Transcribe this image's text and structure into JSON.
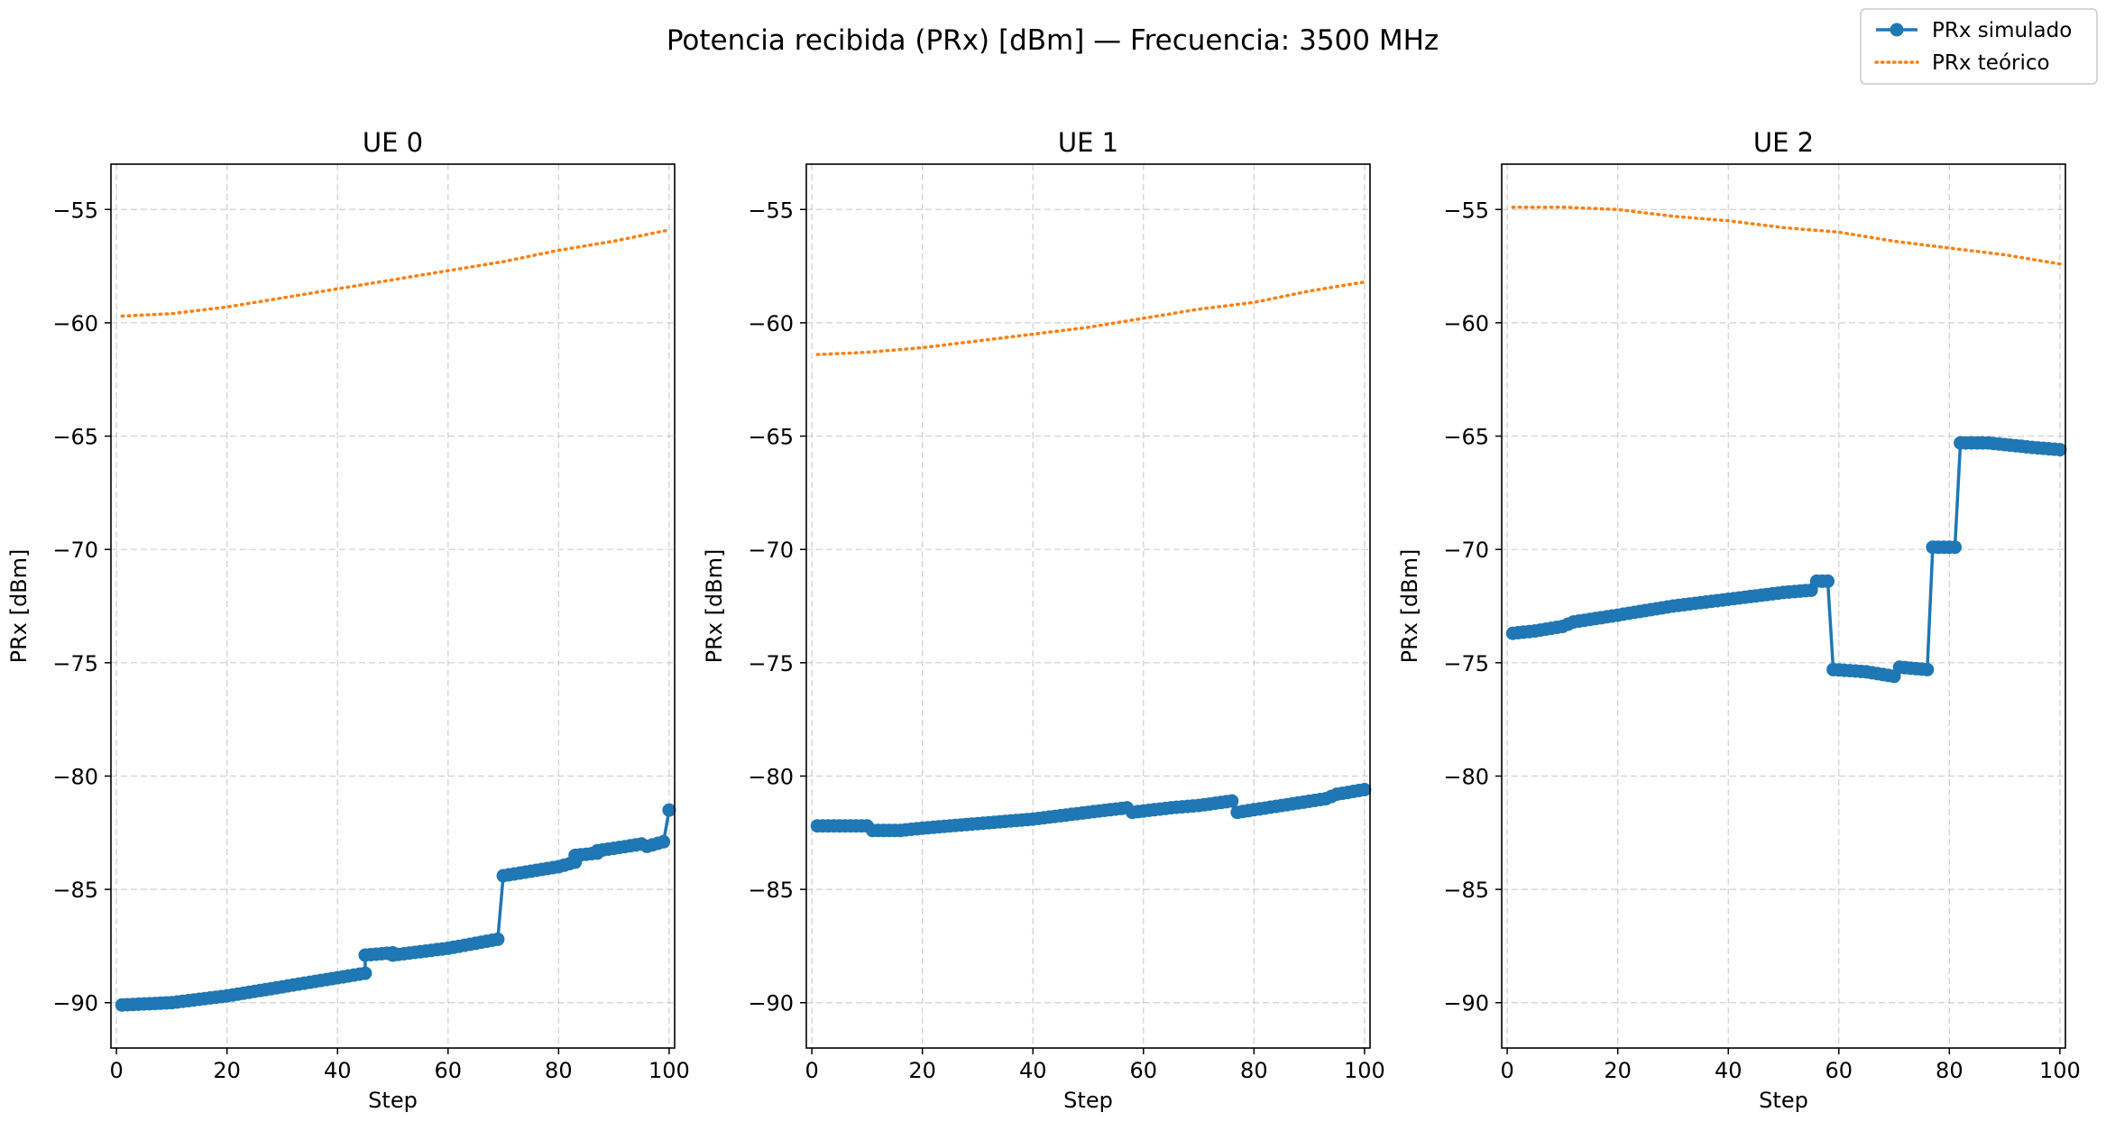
{
  "figure": {
    "suptitle": "Potencia recibida (PRx) [dBm] — Frecuencia: 3500 MHz",
    "legend": {
      "placement": "top-right",
      "entries": [
        {
          "label": "PRx simulado",
          "color": "#1f77b4",
          "style": "solid-line-circle-markers"
        },
        {
          "label": "PRx teórico",
          "color": "#ff7f0e",
          "style": "dotted-line"
        }
      ]
    }
  },
  "chart_data": [
    {
      "type": "line",
      "title": "UE 0",
      "xlabel": "Step",
      "ylabel": "PRx [dBm]",
      "xlim": [
        -1,
        101
      ],
      "ylim": [
        -92,
        -53
      ],
      "xticks": [
        0,
        20,
        40,
        60,
        80,
        100
      ],
      "yticks": [
        -90,
        -85,
        -80,
        -75,
        -70,
        -65,
        -60,
        -55
      ],
      "ytick_labels": [
        "−90",
        "−85",
        "−80",
        "−75",
        "−70",
        "−65",
        "−60",
        "−55"
      ],
      "grid": true,
      "series": [
        {
          "name": "PRx simulado",
          "color": "#1f77b4",
          "markers": true,
          "points": [
            [
              1,
              -90.1
            ],
            [
              10,
              -90.0
            ],
            [
              20,
              -89.7
            ],
            [
              30,
              -89.3
            ],
            [
              40,
              -88.9
            ],
            [
              45,
              -88.7
            ],
            [
              45,
              -87.9
            ],
            [
              50,
              -87.8
            ],
            [
              50,
              -87.9
            ],
            [
              60,
              -87.6
            ],
            [
              69,
              -87.2
            ],
            [
              70,
              -84.4
            ],
            [
              80,
              -84.0
            ],
            [
              83,
              -83.8
            ],
            [
              83,
              -83.5
            ],
            [
              87,
              -83.4
            ],
            [
              87,
              -83.3
            ],
            [
              95,
              -83.0
            ],
            [
              96,
              -83.1
            ],
            [
              99,
              -82.9
            ],
            [
              100,
              -81.5
            ]
          ]
        },
        {
          "name": "PRx teórico",
          "color": "#ff7f0e",
          "markers": false,
          "points": [
            [
              1,
              -59.7
            ],
            [
              10,
              -59.6
            ],
            [
              20,
              -59.3
            ],
            [
              30,
              -58.9
            ],
            [
              40,
              -58.5
            ],
            [
              50,
              -58.1
            ],
            [
              60,
              -57.7
            ],
            [
              70,
              -57.3
            ],
            [
              80,
              -56.8
            ],
            [
              90,
              -56.4
            ],
            [
              100,
              -55.9
            ]
          ]
        }
      ]
    },
    {
      "type": "line",
      "title": "UE 1",
      "xlabel": "Step",
      "ylabel": "PRx [dBm]",
      "xlim": [
        -1,
        101
      ],
      "ylim": [
        -92,
        -53
      ],
      "xticks": [
        0,
        20,
        40,
        60,
        80,
        100
      ],
      "yticks": [
        -90,
        -85,
        -80,
        -75,
        -70,
        -65,
        -60,
        -55
      ],
      "ytick_labels": [
        "−90",
        "−85",
        "−80",
        "−75",
        "−70",
        "−65",
        "−60",
        "−55"
      ],
      "grid": true,
      "series": [
        {
          "name": "PRx simulado",
          "color": "#1f77b4",
          "markers": true,
          "points": [
            [
              1,
              -82.2
            ],
            [
              10,
              -82.2
            ],
            [
              11,
              -82.4
            ],
            [
              15,
              -82.4
            ],
            [
              16,
              -82.4
            ],
            [
              20,
              -82.3
            ],
            [
              30,
              -82.1
            ],
            [
              40,
              -81.9
            ],
            [
              50,
              -81.6
            ],
            [
              57,
              -81.4
            ],
            [
              58,
              -81.6
            ],
            [
              65,
              -81.4
            ],
            [
              70,
              -81.3
            ],
            [
              76,
              -81.1
            ],
            [
              77,
              -81.6
            ],
            [
              85,
              -81.3
            ],
            [
              93,
              -81.0
            ],
            [
              95,
              -80.8
            ],
            [
              100,
              -80.6
            ]
          ]
        },
        {
          "name": "PRx teórico",
          "color": "#ff7f0e",
          "markers": false,
          "points": [
            [
              1,
              -61.4
            ],
            [
              10,
              -61.3
            ],
            [
              20,
              -61.1
            ],
            [
              30,
              -60.8
            ],
            [
              40,
              -60.5
            ],
            [
              50,
              -60.2
            ],
            [
              60,
              -59.8
            ],
            [
              70,
              -59.4
            ],
            [
              80,
              -59.1
            ],
            [
              90,
              -58.6
            ],
            [
              100,
              -58.2
            ]
          ]
        }
      ]
    },
    {
      "type": "line",
      "title": "UE 2",
      "xlabel": "Step",
      "ylabel": "PRx [dBm]",
      "xlim": [
        -1,
        101
      ],
      "ylim": [
        -92,
        -53
      ],
      "xticks": [
        0,
        20,
        40,
        60,
        80,
        100
      ],
      "yticks": [
        -90,
        -85,
        -80,
        -75,
        -70,
        -65,
        -60,
        -55
      ],
      "ytick_labels": [
        "−90",
        "−85",
        "−80",
        "−75",
        "−70",
        "−65",
        "−60",
        "−55"
      ],
      "grid": true,
      "series": [
        {
          "name": "PRx simulado",
          "color": "#1f77b4",
          "markers": true,
          "points": [
            [
              1,
              -73.7
            ],
            [
              5,
              -73.6
            ],
            [
              10,
              -73.4
            ],
            [
              12,
              -73.2
            ],
            [
              20,
              -72.9
            ],
            [
              30,
              -72.5
            ],
            [
              40,
              -72.2
            ],
            [
              50,
              -71.9
            ],
            [
              55,
              -71.8
            ],
            [
              56,
              -71.4
            ],
            [
              58,
              -71.4
            ],
            [
              59,
              -75.3
            ],
            [
              65,
              -75.4
            ],
            [
              70,
              -75.6
            ],
            [
              71,
              -75.2
            ],
            [
              76,
              -75.3
            ],
            [
              77,
              -69.9
            ],
            [
              81,
              -69.9
            ],
            [
              82,
              -65.3
            ],
            [
              86,
              -65.3
            ],
            [
              87,
              -65.3
            ],
            [
              95,
              -65.5
            ],
            [
              100,
              -65.6
            ]
          ]
        },
        {
          "name": "PRx teórico",
          "color": "#ff7f0e",
          "markers": false,
          "points": [
            [
              1,
              -54.9
            ],
            [
              10,
              -54.9
            ],
            [
              20,
              -55.0
            ],
            [
              30,
              -55.3
            ],
            [
              40,
              -55.5
            ],
            [
              50,
              -55.8
            ],
            [
              60,
              -56.0
            ],
            [
              70,
              -56.4
            ],
            [
              80,
              -56.7
            ],
            [
              90,
              -57.0
            ],
            [
              100,
              -57.4
            ]
          ]
        }
      ]
    }
  ]
}
